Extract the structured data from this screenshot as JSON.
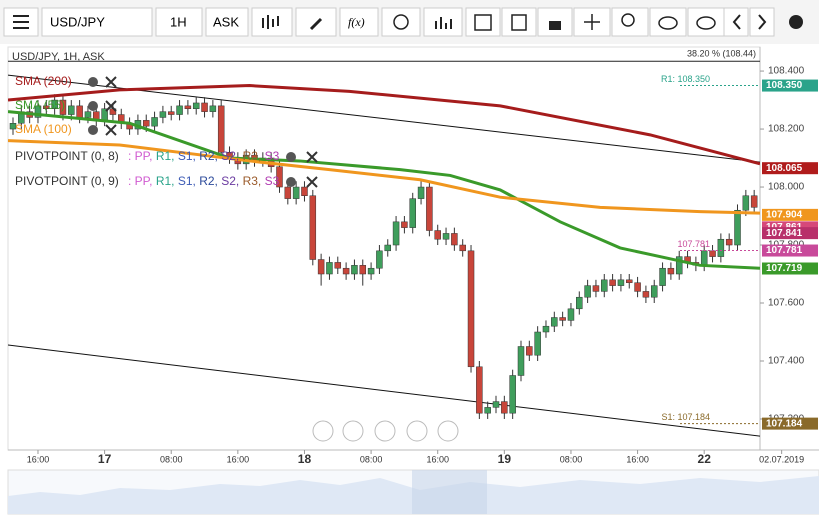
{
  "toolbar": {
    "symbol": "USD/JPY",
    "timeframe": "1H",
    "price_side": "ASK",
    "function_button": "f(x)"
  },
  "chart_data": {
    "type": "candlestick",
    "title": "USD/JPY, 1H, ASK",
    "xlim": [
      -0.6,
      89.7
    ],
    "ylim": [
      107.093,
      108.483
    ],
    "xticks": [
      {
        "value": 3,
        "label": "16:00"
      },
      {
        "value": 19,
        "label": "08:00"
      },
      {
        "value": 27,
        "label": "16:00"
      },
      {
        "value": 43,
        "label": "08:00"
      },
      {
        "value": 51,
        "label": "16:00"
      },
      {
        "value": 67,
        "label": "08:00"
      },
      {
        "value": 75,
        "label": "16:00"
      },
      {
        "value": 92.3,
        "label": "02.07.2019"
      }
    ],
    "day_ticks": [
      {
        "value": 11,
        "label": "17"
      },
      {
        "value": 35,
        "label": "18"
      },
      {
        "value": 59,
        "label": "19"
      },
      {
        "value": 83,
        "label": "22"
      }
    ],
    "yticks": [
      {
        "value": 108.4,
        "label": "108.400"
      },
      {
        "value": 108.2,
        "label": "108.200"
      },
      {
        "value": 108.0,
        "label": "108.000"
      },
      {
        "value": 107.8,
        "label": "107.800"
      },
      {
        "value": 107.6,
        "label": "107.600"
      },
      {
        "value": 107.4,
        "label": "107.400"
      },
      {
        "value": 107.2,
        "label": "107.200"
      }
    ],
    "up_color": "#3f9e5c",
    "down_color": "#c8453a",
    "open": [
      108.2,
      108.22,
      108.26,
      108.24,
      108.28,
      108.27,
      108.3,
      108.25,
      108.28,
      108.24,
      108.26,
      108.23,
      108.27,
      108.25,
      108.22,
      108.2,
      108.23,
      108.21,
      108.24,
      108.26,
      108.25,
      108.28,
      108.27,
      108.29,
      108.26,
      108.28,
      108.12,
      108.1,
      108.08,
      108.11,
      108.09,
      108.1,
      108.07,
      108.0,
      107.96,
      108.0,
      107.97,
      107.75,
      107.7,
      107.74,
      107.72,
      107.7,
      107.73,
      107.7,
      107.72,
      107.78,
      107.8,
      107.88,
      107.86,
      107.96,
      108.0,
      107.85,
      107.82,
      107.84,
      107.8,
      107.78,
      107.38,
      107.22,
      107.24,
      107.26,
      107.22,
      107.35,
      107.45,
      107.42,
      107.5,
      107.52,
      107.55,
      107.54,
      107.58,
      107.62,
      107.66,
      107.64,
      107.68,
      107.66,
      107.68,
      107.67,
      107.64,
      107.62,
      107.66,
      107.72,
      107.7,
      107.76,
      107.74,
      107.73,
      107.78,
      107.76,
      107.82,
      107.8,
      107.92,
      107.97
    ],
    "high": [
      108.24,
      108.28,
      108.28,
      108.3,
      108.3,
      108.32,
      108.32,
      108.3,
      108.3,
      108.28,
      108.28,
      108.29,
      108.29,
      108.27,
      108.24,
      108.25,
      108.25,
      108.26,
      108.28,
      108.28,
      108.3,
      108.3,
      108.31,
      108.31,
      108.3,
      108.3,
      108.14,
      108.12,
      108.13,
      108.13,
      108.12,
      108.12,
      108.09,
      108.02,
      108.02,
      108.02,
      107.99,
      107.77,
      107.76,
      107.76,
      107.74,
      107.75,
      107.75,
      107.74,
      107.8,
      107.82,
      107.9,
      107.9,
      107.98,
      108.02,
      108.02,
      107.87,
      107.86,
      107.86,
      107.82,
      107.8,
      107.4,
      107.26,
      107.28,
      107.28,
      107.37,
      107.47,
      107.47,
      107.52,
      107.54,
      107.57,
      107.57,
      107.6,
      107.64,
      107.68,
      107.68,
      107.7,
      107.7,
      107.7,
      107.7,
      107.69,
      107.66,
      107.68,
      107.74,
      107.74,
      107.78,
      107.78,
      107.76,
      107.8,
      107.8,
      107.84,
      107.84,
      107.94,
      107.99,
      107.99
    ],
    "low": [
      108.18,
      108.2,
      108.22,
      108.22,
      108.25,
      108.25,
      108.23,
      108.23,
      108.22,
      108.22,
      108.21,
      108.21,
      108.23,
      108.2,
      108.18,
      108.18,
      108.19,
      108.19,
      108.22,
      108.23,
      108.23,
      108.25,
      108.25,
      108.24,
      108.24,
      108.1,
      108.08,
      108.06,
      108.06,
      108.07,
      108.07,
      108.05,
      107.98,
      107.94,
      107.94,
      107.95,
      107.73,
      107.66,
      107.68,
      107.7,
      107.68,
      107.68,
      107.66,
      107.68,
      107.7,
      107.76,
      107.78,
      107.84,
      107.84,
      107.94,
      107.83,
      107.8,
      107.8,
      107.78,
      107.76,
      107.36,
      107.2,
      107.2,
      107.22,
      107.2,
      107.2,
      107.33,
      107.4,
      107.4,
      107.48,
      107.5,
      107.52,
      107.52,
      107.56,
      107.6,
      107.62,
      107.62,
      107.64,
      107.64,
      107.65,
      107.62,
      107.6,
      107.6,
      107.64,
      107.68,
      107.68,
      107.72,
      107.71,
      107.71,
      107.74,
      107.74,
      107.78,
      107.78,
      107.9,
      107.91
    ],
    "close": [
      108.22,
      108.26,
      108.24,
      108.28,
      108.27,
      108.3,
      108.25,
      108.28,
      108.24,
      108.26,
      108.23,
      108.27,
      108.25,
      108.22,
      108.2,
      108.23,
      108.21,
      108.24,
      108.26,
      108.25,
      108.28,
      108.27,
      108.29,
      108.26,
      108.28,
      108.12,
      108.1,
      108.08,
      108.11,
      108.09,
      108.1,
      108.07,
      108.0,
      107.96,
      108.0,
      107.97,
      107.75,
      107.7,
      107.74,
      107.72,
      107.7,
      107.73,
      107.7,
      107.72,
      107.78,
      107.8,
      107.88,
      107.86,
      107.96,
      108.0,
      107.85,
      107.82,
      107.84,
      107.8,
      107.78,
      107.38,
      107.22,
      107.24,
      107.26,
      107.22,
      107.35,
      107.45,
      107.42,
      107.5,
      107.52,
      107.55,
      107.54,
      107.58,
      107.62,
      107.66,
      107.64,
      107.68,
      107.66,
      107.68,
      107.67,
      107.64,
      107.62,
      107.66,
      107.72,
      107.7,
      107.76,
      107.74,
      107.73,
      107.78,
      107.76,
      107.82,
      107.8,
      107.92,
      107.97,
      107.93
    ],
    "series": [
      {
        "name": "SMA (200)",
        "color": "#a51c1c",
        "x": [
          -0.6,
          12.8,
          28.4,
          40.4,
          58.5,
          76.5,
          89.7
        ],
        "values": [
          108.3,
          108.335,
          108.35,
          108.33,
          108.28,
          108.18,
          108.08
        ]
      },
      {
        "name": "SMA (55)",
        "color": "#3a9a2a",
        "x": [
          -0.6,
          14.0,
          26.0,
          34.4,
          46.5,
          52.5,
          58.5,
          65.7,
          72.9,
          82.5,
          89.7
        ],
        "values": [
          108.26,
          108.22,
          108.1,
          108.09,
          108.06,
          108.04,
          107.99,
          107.88,
          107.79,
          107.73,
          107.72
        ]
      },
      {
        "name": "SMA (100)",
        "color": "#f0961e",
        "x": [
          -0.6,
          12.8,
          28.4,
          38.0,
          48.9,
          58.5,
          70.5,
          82.5,
          89.7
        ],
        "values": [
          108.16,
          108.145,
          108.09,
          108.06,
          108.025,
          107.965,
          107.93,
          107.915,
          107.91
        ]
      }
    ],
    "trendlines": [
      {
        "x": [
          -0.6,
          89.7
        ],
        "values": [
          108.386,
          108.086
        ]
      },
      {
        "x": [
          -0.6,
          89.7
        ],
        "values": [
          107.455,
          107.141
        ]
      }
    ],
    "fib_level": {
      "value": 108.434,
      "label": "38.20 % (108.44)"
    },
    "pivot_indicators": [
      {
        "label": "PIVOTPOINT (0, 8)",
        "items": [
          ": PP,",
          "R1,",
          "S1,",
          "R2,",
          "S2,",
          "R3,",
          "S3"
        ]
      },
      {
        "label": "PIVOTPOINT (0, 9)",
        "items": [
          ": PP,",
          "R1,",
          "S1,",
          "R2,",
          "S2,",
          "R3,",
          "S3"
        ]
      }
    ],
    "pivot_colors": [
      "#d05ad0",
      "#2aa38a",
      "#3c5ab4",
      "#2c4a9a",
      "#6a3aa0",
      "#9a5a2a",
      "#b03ab0"
    ],
    "price_badges": [
      {
        "value": 108.35,
        "label": "108.350",
        "color": "#2aa38a",
        "line_label": "R1: 108.350"
      },
      {
        "value": 108.065,
        "label": "108.065",
        "color": "#b01c1c"
      },
      {
        "value": 107.904,
        "label": "107.904",
        "color": "#f0961e"
      },
      {
        "value": 107.861,
        "label": "107.861",
        "color": "#d6487a"
      },
      {
        "value": 107.841,
        "label": "107.841",
        "color": "#b8306a"
      },
      {
        "value": 107.781,
        "label": "107.781",
        "color": "#c84a9a",
        "line_label": "107.781"
      },
      {
        "value": 107.719,
        "label": "107.719",
        "color": "#3a9a2a"
      },
      {
        "value": 107.184,
        "label": "107.184",
        "color": "#8a6a2a",
        "line_label": "S1: 107.184"
      }
    ]
  }
}
